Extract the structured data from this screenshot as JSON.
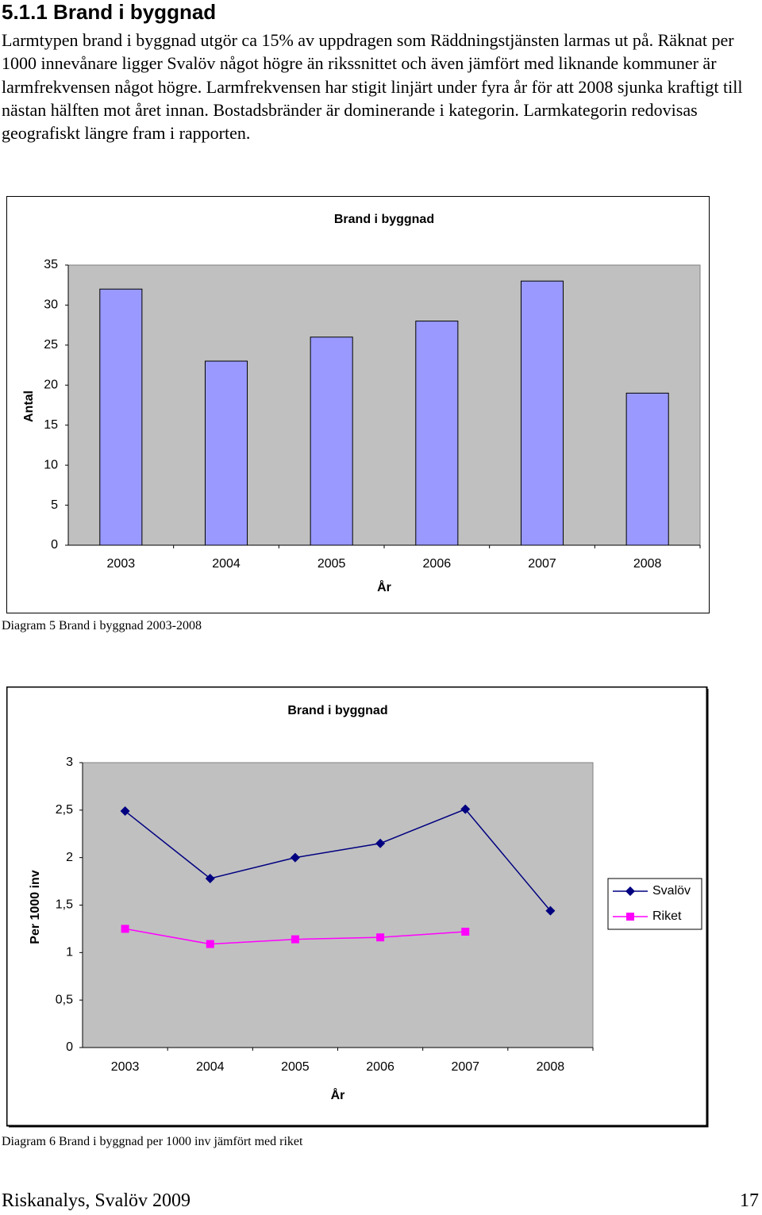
{
  "heading": "5.1.1  Brand i byggnad",
  "paragraph": "Larmtypen brand i byggnad utgör ca 15% av uppdragen som Räddningstjänsten larmas ut på. Räknat per 1000 innevånare ligger Svalöv något högre än rikssnittet och även jämfört med liknande kommuner är larmfrekvensen något högre. Larmfrekvensen har stigit linjärt under fyra år för att 2008 sjunka kraftigt till nästan hälften mot året innan. Bostadsbränder är dominerande i kategorin. Larmkategorin redovisas geografiskt längre fram i rapporten.",
  "captions": [
    "Diagram 5 Brand i byggnad 2003-2008",
    "Diagram 6 Brand i byggnad per 1000 inv jämfört med riket"
  ],
  "footer": {
    "left": "Riskanalys, Svalöv 2009",
    "right": "17"
  },
  "chart_data": [
    {
      "type": "bar",
      "title": "Brand i byggnad",
      "y_label": "Antal",
      "x_label": "År",
      "categories": [
        "2003",
        "2004",
        "2005",
        "2006",
        "2007",
        "2008"
      ],
      "values": [
        32,
        23,
        26,
        28,
        33,
        19
      ],
      "color": "#9999ff",
      "ylim": [
        0,
        35
      ],
      "yticks": [
        0,
        5,
        10,
        15,
        20,
        25,
        30,
        35
      ]
    },
    {
      "type": "line",
      "title": "Brand i byggnad",
      "y_label": "Per 1000 inv",
      "x_label": "År",
      "categories": [
        "2003",
        "2004",
        "2005",
        "2006",
        "2007",
        "2008"
      ],
      "series": [
        {
          "name": "Svalöv",
          "color": "#000080",
          "marker": "diamond",
          "values": [
            2.49,
            1.78,
            2.0,
            2.15,
            2.51,
            1.44
          ]
        },
        {
          "name": "Riket",
          "color": "#ff00ff",
          "marker": "square",
          "values": [
            1.25,
            1.09,
            1.14,
            1.16,
            1.22,
            null
          ]
        }
      ],
      "ylim": [
        0,
        3
      ],
      "yticks": [
        0,
        {
          "value": 0.5,
          "label": "0,5"
        },
        1,
        {
          "value": 1.5,
          "label": "1,5"
        },
        2,
        {
          "value": 2.5,
          "label": "2,5"
        },
        3
      ],
      "legend": "right"
    }
  ]
}
